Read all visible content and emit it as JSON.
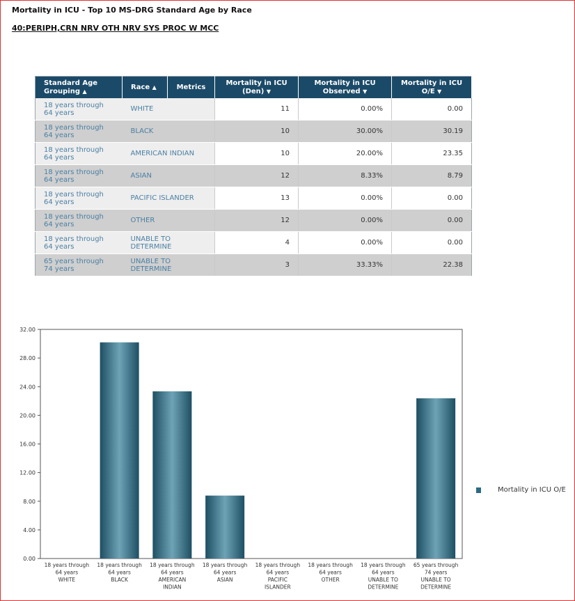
{
  "page": {
    "title": "Mortality in ICU - Top 10 MS-DRG Standard Age by Race",
    "subtitle": "40:PERIPH,CRN NRV OTH NRV SYS PROC W MCC"
  },
  "table": {
    "headers": [
      "Standard Age Grouping ▲",
      "Race ▲",
      "Metrics",
      "Mortality in ICU (Den) ▼",
      "Mortality in ICU Observed ▼",
      "Mortality in ICU O/E ▼"
    ],
    "header_lines": {
      "age_1": "Standard Age",
      "age_2": "Grouping",
      "race": "Race",
      "metrics": "Metrics",
      "den_1": "Mortality in ICU",
      "den_2": "(Den)",
      "obs_1": "Mortality in ICU",
      "obs_2": "Observed",
      "oe_1": "Mortality in ICU",
      "oe_2": "O/E",
      "up": "▲",
      "down": "▼"
    },
    "rows": [
      {
        "age": "18 years through 64 years",
        "race": "WHITE",
        "den": "11",
        "observed": "0.00%",
        "oe": "0.00"
      },
      {
        "age": "18 years through 64 years",
        "race": "BLACK",
        "den": "10",
        "observed": "30.00%",
        "oe": "30.19"
      },
      {
        "age": "18 years through 64 years",
        "race": "AMERICAN INDIAN",
        "den": "10",
        "observed": "20.00%",
        "oe": "23.35"
      },
      {
        "age": "18 years through 64 years",
        "race": "ASIAN",
        "den": "12",
        "observed": "8.33%",
        "oe": "8.79"
      },
      {
        "age": "18 years through 64 years",
        "race": "PACIFIC ISLANDER",
        "den": "13",
        "observed": "0.00%",
        "oe": "0.00"
      },
      {
        "age": "18 years through 64 years",
        "race": "OTHER",
        "den": "12",
        "observed": "0.00%",
        "oe": "0.00"
      },
      {
        "age": "18 years through 64 years",
        "race": "UNABLE TO DETERMINE",
        "den": "4",
        "observed": "0.00%",
        "oe": "0.00"
      },
      {
        "age": "65 years through 74 years",
        "race": "UNABLE TO DETERMINE",
        "den": "3",
        "observed": "33.33%",
        "oe": "22.38"
      }
    ]
  },
  "chart_data": {
    "type": "bar",
    "categories": [
      [
        "18 years through",
        "64 years",
        "WHITE"
      ],
      [
        "18 years through",
        "64 years",
        "BLACK"
      ],
      [
        "18 years through",
        "64 years",
        "AMERICAN",
        "INDIAN"
      ],
      [
        "18 years through",
        "64 years",
        "ASIAN"
      ],
      [
        "18 years through",
        "64 years",
        "PACIFIC",
        "ISLANDER"
      ],
      [
        "18 years through",
        "64 years",
        "OTHER"
      ],
      [
        "18 years through",
        "64 years",
        "UNABLE TO",
        "DETERMINE"
      ],
      [
        "65 years through",
        "74 years",
        "UNABLE TO",
        "DETERMINE"
      ]
    ],
    "series": [
      {
        "name": "Mortality in ICU O/E",
        "values": [
          0.0,
          30.19,
          23.35,
          8.79,
          0.0,
          0.0,
          0.0,
          22.38
        ]
      }
    ],
    "ylim": [
      0,
      32
    ],
    "yticks": [
      "0.00",
      "4.00",
      "8.00",
      "12.00",
      "16.00",
      "20.00",
      "24.00",
      "28.00",
      "32.00"
    ],
    "grid": false,
    "legend_position": "right",
    "colors": {
      "bar_dark": "#1e4f63",
      "bar_light": "#6ea3b6"
    }
  }
}
